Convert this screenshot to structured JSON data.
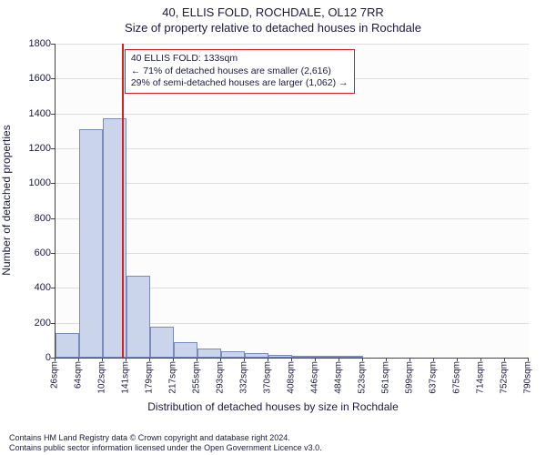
{
  "header": {
    "address": "40, ELLIS FOLD, ROCHDALE, OL12 7RR",
    "subtitle": "Size of property relative to detached houses in Rochdale"
  },
  "chart": {
    "type": "histogram",
    "ylim": [
      0,
      1800
    ],
    "ytick_step": 200,
    "yticks": [
      0,
      200,
      400,
      600,
      800,
      1000,
      1200,
      1400,
      1600,
      1800
    ],
    "xticks": [
      "26sqm",
      "64sqm",
      "102sqm",
      "141sqm",
      "179sqm",
      "217sqm",
      "255sqm",
      "293sqm",
      "332sqm",
      "370sqm",
      "408sqm",
      "446sqm",
      "484sqm",
      "523sqm",
      "561sqm",
      "599sqm",
      "637sqm",
      "675sqm",
      "714sqm",
      "752sqm",
      "790sqm"
    ],
    "bars": [
      140,
      1310,
      1370,
      470,
      175,
      90,
      50,
      35,
      25,
      18,
      12,
      10,
      8,
      0,
      0,
      0,
      0,
      0,
      0,
      0
    ],
    "bar_color": "#cad4ea",
    "bar_border": "#7a8abb",
    "grid_color": "#dddddd",
    "bg_color": "#fcfcfd",
    "marker_value": 133,
    "marker_line_color": "#d62020",
    "xlabel": "Distribution of detached houses by size in Rochdale",
    "ylabel": "Number of detached properties"
  },
  "annotation": {
    "line1": "40 ELLIS FOLD: 133sqm",
    "line2": "← 71% of detached houses are smaller (2,616)",
    "line3": "29% of semi-detached houses are larger (1,062) →"
  },
  "footer": {
    "line1": "Contains HM Land Registry data © Crown copyright and database right 2024.",
    "line2": "Contains public sector information licensed under the Open Government Licence v3.0."
  }
}
